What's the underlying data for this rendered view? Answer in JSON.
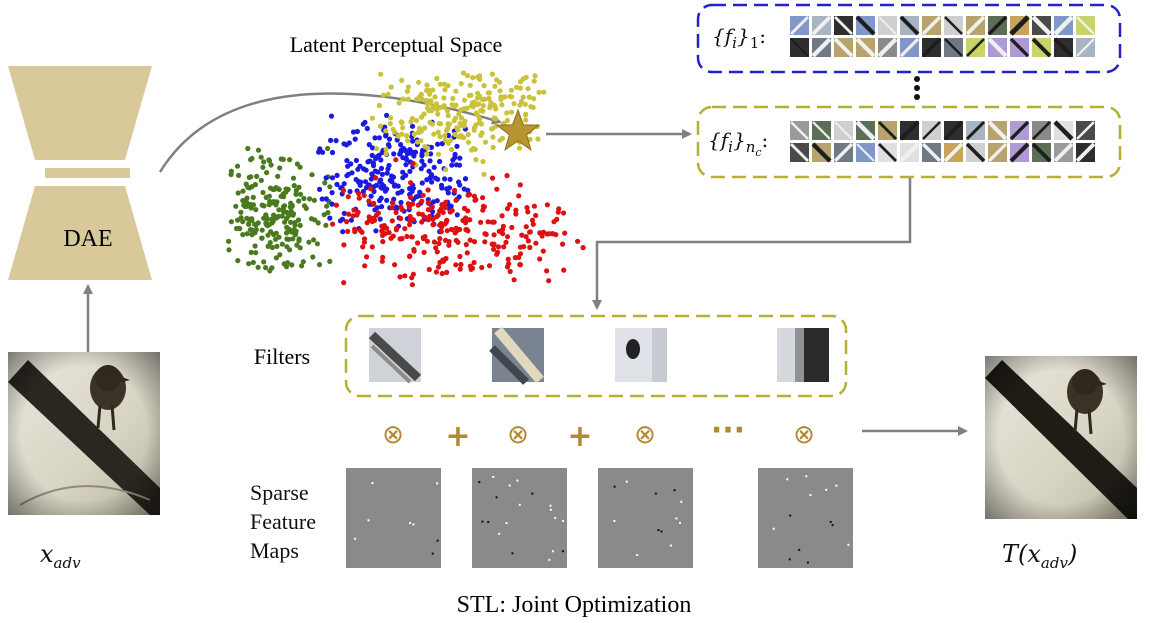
{
  "diagram": {
    "latent_space_title": "Latent Perceptual Space",
    "dae_label": "DAE",
    "filters_label": "Filters",
    "sparse_label": [
      "Sparse",
      "Feature",
      "Maps"
    ],
    "stl_title": "STL: Joint Optimization",
    "input_label": "x",
    "input_sub": "adv",
    "output_label_prefix": "T(x",
    "output_sub": "adv",
    "output_label_suffix": ")",
    "set1_label": "{f",
    "set1_sub": "i",
    "set1_close": "}",
    "set1_index": "1",
    "setn_label": "{f",
    "setn_sub": "i",
    "setn_close": "}",
    "setn_index": "n",
    "setn_index_sub": "c",
    "conv_symbol": "⊗",
    "plus_symbol": "+",
    "ellipsis": "···",
    "colors": {
      "dae": "#d9c99a",
      "blue_box": "#2222cc",
      "olive_box": "#b5b030",
      "green": "#4a7a1e",
      "blue": "#1a1ae0",
      "yellow": "#c9c23a",
      "red": "#dd1111",
      "star": "#b8952e",
      "arrow": "#808080",
      "operator": "#b08a30"
    }
  }
}
